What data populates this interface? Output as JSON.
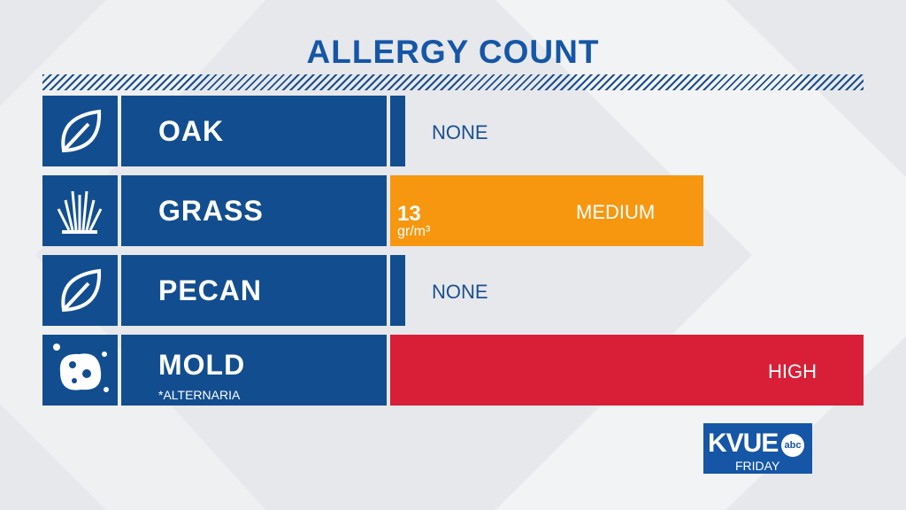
{
  "header": {
    "title": "ALLERGY COUNT"
  },
  "rows": [
    {
      "name": "OAK",
      "level": "NONE"
    },
    {
      "name": "GRASS",
      "level": "MEDIUM",
      "count": "13",
      "unit": "gr/m³"
    },
    {
      "name": "PECAN",
      "level": "NONE"
    },
    {
      "name": "MOLD",
      "note": "*ALTERNARIA",
      "level": "HIGH"
    }
  ],
  "logo": {
    "station": "KVUE",
    "network": "abc",
    "day": "FRIDAY"
  }
}
